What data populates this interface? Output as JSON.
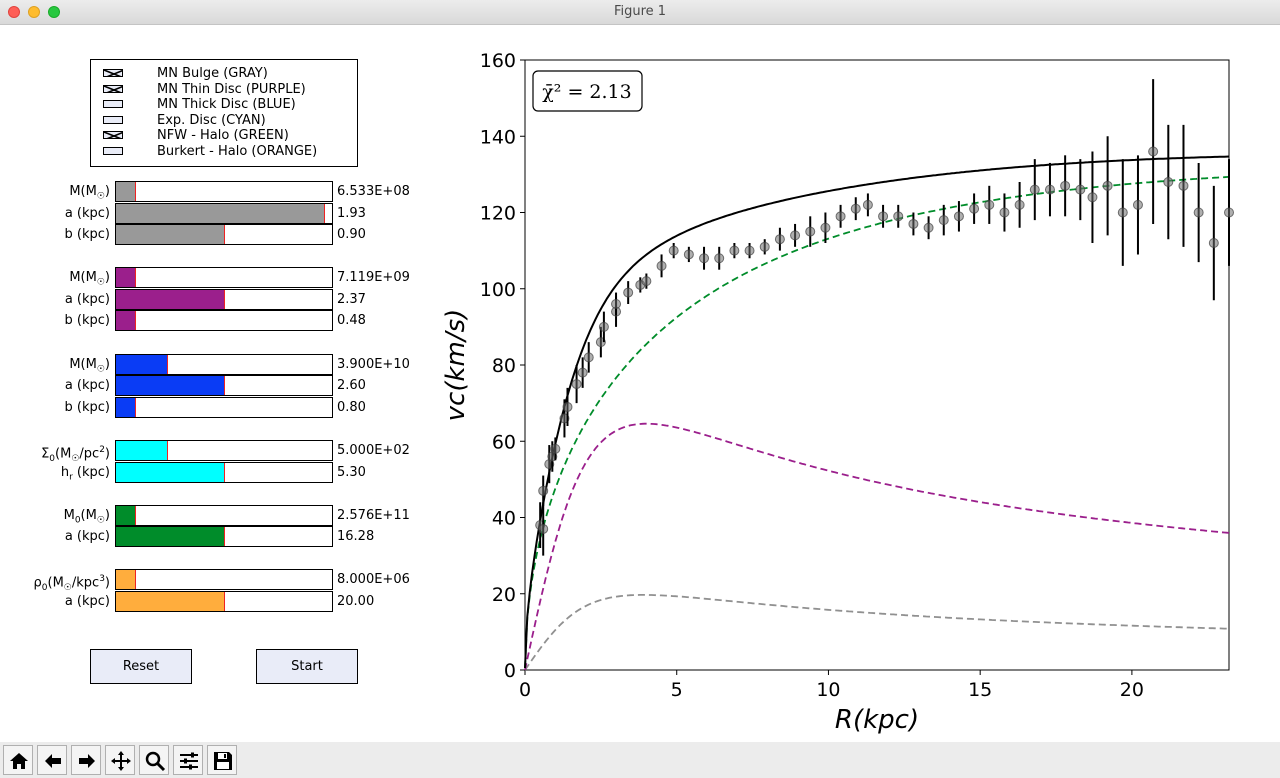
{
  "window": {
    "title": "Figure 1"
  },
  "legend": {
    "items": [
      {
        "label": "MN Bulge (GRAY)",
        "checked": true
      },
      {
        "label": "MN Thin Disc (PURPLE)",
        "checked": true
      },
      {
        "label": "MN Thick Disc (BLUE)",
        "checked": false
      },
      {
        "label": "Exp. Disc (CYAN)",
        "checked": false
      },
      {
        "label": "NFW - Halo (GREEN)",
        "checked": true
      },
      {
        "label": "Burkert - Halo (ORANGE)",
        "checked": false
      }
    ]
  },
  "sliders": {
    "bulge_M": {
      "label": "M(M☉)",
      "value": "6.533E+08",
      "fraction": 0.09,
      "color": "#999999"
    },
    "bulge_a": {
      "label": "a (kpc)",
      "value": "1.93",
      "fraction": 0.965,
      "color": "#999999"
    },
    "bulge_b": {
      "label": "b (kpc)",
      "value": "0.90",
      "fraction": 0.5,
      "color": "#999999"
    },
    "thin_M": {
      "label": "M(M☉)",
      "value": "7.119E+09",
      "fraction": 0.09,
      "color": "#9b1f8c"
    },
    "thin_a": {
      "label": "a (kpc)",
      "value": "2.37",
      "fraction": 0.5,
      "color": "#9b1f8c"
    },
    "thin_b": {
      "label": "b (kpc)",
      "value": "0.48",
      "fraction": 0.09,
      "color": "#9b1f8c"
    },
    "thick_M": {
      "label": "M(M☉)",
      "value": "3.900E+10",
      "fraction": 0.235,
      "color": "#0a3cf5"
    },
    "thick_a": {
      "label": "a (kpc)",
      "value": "2.60",
      "fraction": 0.5,
      "color": "#0a3cf5"
    },
    "thick_b": {
      "label": "b (kpc)",
      "value": "0.80",
      "fraction": 0.09,
      "color": "#0a3cf5"
    },
    "exp_sigma": {
      "label": "Σ0(M☉/pc2)",
      "value": "5.000E+02",
      "fraction": 0.235,
      "color": "#00ffff"
    },
    "exp_h": {
      "label": "hr (kpc)",
      "value": "5.30",
      "fraction": 0.5,
      "color": "#00ffff"
    },
    "nfw_M": {
      "label": "M0(M☉)",
      "value": "2.576E+11",
      "fraction": 0.09,
      "color": "#008c2a"
    },
    "nfw_a": {
      "label": "a (kpc)",
      "value": "16.28",
      "fraction": 0.5,
      "color": "#008c2a"
    },
    "bur_rho": {
      "label": "ρ0(M☉/kpc3)",
      "value": "8.000E+06",
      "fraction": 0.09,
      "color": "#ffad3d"
    },
    "bur_a": {
      "label": "a (kpc)",
      "value": "20.00",
      "fraction": 0.5,
      "color": "#ffad3d"
    }
  },
  "buttons": {
    "reset": "Reset",
    "start": "Start"
  },
  "toolbar": [
    "home-icon",
    "back-icon",
    "forward-icon",
    "pan-icon",
    "zoom-icon",
    "configure-icon",
    "save-icon"
  ],
  "chart_data": {
    "type": "line",
    "xlabel": "R(kpc)",
    "ylabel": "vc(km/s)",
    "annotation": "χ̄² = 2.13",
    "xlim": [
      0,
      23.2
    ],
    "ylim": [
      0,
      160
    ],
    "xticks": [
      0,
      5,
      10,
      15,
      20
    ],
    "yticks": [
      0,
      20,
      40,
      60,
      80,
      100,
      120,
      140,
      160
    ],
    "observed": [
      {
        "x": 0.5,
        "y": 38,
        "err": 6
      },
      {
        "x": 0.6,
        "y": 37,
        "err": 7
      },
      {
        "x": 0.6,
        "y": 47,
        "err": 4
      },
      {
        "x": 0.8,
        "y": 54,
        "err": 5
      },
      {
        "x": 0.9,
        "y": 56,
        "err": 4
      },
      {
        "x": 1.0,
        "y": 58,
        "err": 3
      },
      {
        "x": 1.3,
        "y": 66,
        "err": 5
      },
      {
        "x": 1.4,
        "y": 69,
        "err": 5
      },
      {
        "x": 1.7,
        "y": 75,
        "err": 5
      },
      {
        "x": 1.9,
        "y": 78,
        "err": 4
      },
      {
        "x": 2.1,
        "y": 82,
        "err": 4
      },
      {
        "x": 2.5,
        "y": 86,
        "err": 4
      },
      {
        "x": 2.6,
        "y": 90,
        "err": 4
      },
      {
        "x": 3.0,
        "y": 94,
        "err": 4
      },
      {
        "x": 3.0,
        "y": 96,
        "err": 3
      },
      {
        "x": 3.4,
        "y": 99,
        "err": 3
      },
      {
        "x": 3.8,
        "y": 101,
        "err": 2
      },
      {
        "x": 4.0,
        "y": 102,
        "err": 2
      },
      {
        "x": 4.5,
        "y": 106,
        "err": 3
      },
      {
        "x": 4.9,
        "y": 110,
        "err": 2
      },
      {
        "x": 5.4,
        "y": 109,
        "err": 2
      },
      {
        "x": 5.9,
        "y": 108,
        "err": 3
      },
      {
        "x": 6.4,
        "y": 108,
        "err": 3
      },
      {
        "x": 6.9,
        "y": 110,
        "err": 2
      },
      {
        "x": 7.4,
        "y": 110,
        "err": 2
      },
      {
        "x": 7.9,
        "y": 111,
        "err": 2
      },
      {
        "x": 8.4,
        "y": 113,
        "err": 3
      },
      {
        "x": 8.9,
        "y": 114,
        "err": 3
      },
      {
        "x": 9.4,
        "y": 115,
        "err": 4
      },
      {
        "x": 9.9,
        "y": 116,
        "err": 4
      },
      {
        "x": 10.4,
        "y": 119,
        "err": 3
      },
      {
        "x": 10.9,
        "y": 121,
        "err": 3
      },
      {
        "x": 11.3,
        "y": 122,
        "err": 3
      },
      {
        "x": 11.8,
        "y": 119,
        "err": 3
      },
      {
        "x": 12.3,
        "y": 119,
        "err": 3
      },
      {
        "x": 12.8,
        "y": 117,
        "err": 3
      },
      {
        "x": 13.3,
        "y": 116,
        "err": 3
      },
      {
        "x": 13.8,
        "y": 118,
        "err": 4
      },
      {
        "x": 14.3,
        "y": 119,
        "err": 4
      },
      {
        "x": 14.8,
        "y": 121,
        "err": 4
      },
      {
        "x": 15.3,
        "y": 122,
        "err": 5
      },
      {
        "x": 15.8,
        "y": 120,
        "err": 5
      },
      {
        "x": 16.3,
        "y": 122,
        "err": 6
      },
      {
        "x": 16.8,
        "y": 126,
        "err": 8
      },
      {
        "x": 17.3,
        "y": 126,
        "err": 7
      },
      {
        "x": 17.8,
        "y": 127,
        "err": 8
      },
      {
        "x": 18.3,
        "y": 126,
        "err": 8
      },
      {
        "x": 18.7,
        "y": 124,
        "err": 12
      },
      {
        "x": 19.2,
        "y": 127,
        "err": 13
      },
      {
        "x": 19.7,
        "y": 120,
        "err": 14
      },
      {
        "x": 20.2,
        "y": 122,
        "err": 13
      },
      {
        "x": 20.7,
        "y": 136,
        "err": 19
      },
      {
        "x": 21.2,
        "y": 128,
        "err": 15
      },
      {
        "x": 21.7,
        "y": 127,
        "err": 16
      },
      {
        "x": 22.2,
        "y": 120,
        "err": 13
      },
      {
        "x": 22.7,
        "y": 112,
        "err": 15
      },
      {
        "x": 23.2,
        "y": 120,
        "err": 14
      }
    ],
    "model_params": {
      "total": {
        "color": "#000000"
      },
      "nfw": {
        "color": "#008c2a",
        "vmax": 131.4,
        "rs": 16.28
      },
      "thin": {
        "color": "#9b1f8c",
        "peak_v": 64.6,
        "peak_r": 4.0
      },
      "bulge": {
        "color": "#909090",
        "peak_v": 19.7,
        "peak_r": 3.9
      }
    }
  }
}
